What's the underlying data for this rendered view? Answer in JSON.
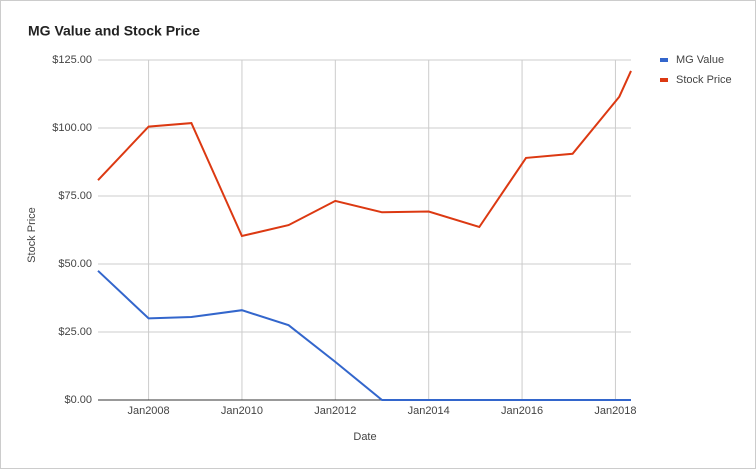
{
  "chart_data": {
    "type": "line",
    "title": "MG Value and Stock Price",
    "x_label": "Date",
    "y_label": "Stock Price",
    "x": [
      "2006-12",
      "2008-01",
      "2008-12",
      "2010-01",
      "2011-01",
      "2012-01",
      "2013-01",
      "2014-01",
      "2015-02",
      "2016-02",
      "2017-02",
      "2018-02",
      "2018-05"
    ],
    "xlim": [
      "2006-12",
      "2018-05"
    ],
    "xticks": [
      {
        "value": "2008-01",
        "label": "Jan2008"
      },
      {
        "value": "2010-01",
        "label": "Jan2010"
      },
      {
        "value": "2012-01",
        "label": "Jan2012"
      },
      {
        "value": "2014-01",
        "label": "Jan2014"
      },
      {
        "value": "2016-01",
        "label": "Jan2016"
      },
      {
        "value": "2018-01",
        "label": "Jan2018"
      }
    ],
    "ylim": [
      0,
      125
    ],
    "yticks": [
      {
        "value": 0,
        "label": "$0.00"
      },
      {
        "value": 25,
        "label": "$25.00"
      },
      {
        "value": 50,
        "label": "$50.00"
      },
      {
        "value": 75,
        "label": "$75.00"
      },
      {
        "value": 100,
        "label": "$100.00"
      },
      {
        "value": 125,
        "label": "$125.00"
      }
    ],
    "grid": true,
    "legend": "right",
    "series": [
      {
        "name": "MG Value",
        "color": "#3366cc",
        "values": [
          47.5,
          30,
          30.5,
          33,
          27.5,
          14,
          0,
          0,
          0,
          0,
          0,
          0,
          0
        ]
      },
      {
        "name": "Stock Price",
        "color": "#dc3912",
        "values": [
          80.8,
          100.5,
          101.8,
          60.3,
          64.3,
          73.2,
          69,
          69.3,
          63.6,
          89,
          90.5,
          111.5,
          121
        ]
      }
    ]
  }
}
